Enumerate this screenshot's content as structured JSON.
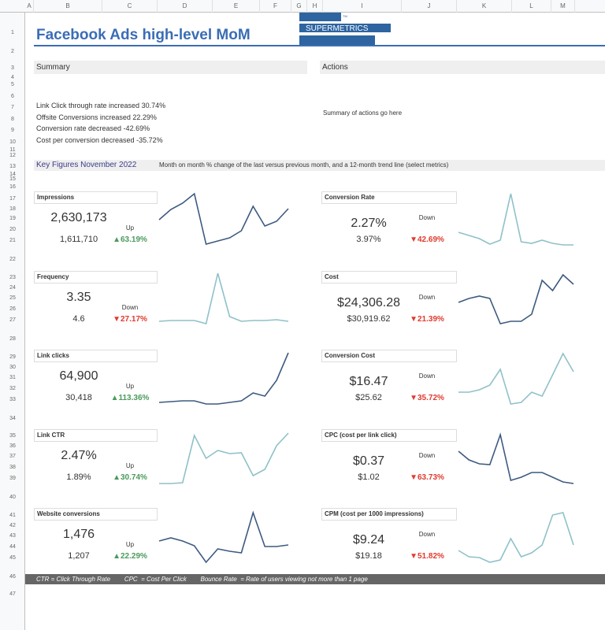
{
  "columns": [
    "A",
    "B",
    "C",
    "D",
    "E",
    "F",
    "G",
    "H",
    "I",
    "J",
    "K",
    "L",
    "M"
  ],
  "title": "Facebook Ads high-level MoM",
  "logo": {
    "text": "SUPERMETRICS",
    "tm": "TM",
    "color": "#2e64a0"
  },
  "summary": {
    "label": "Summary",
    "lines": [
      "Link Click through rate increased 30.74%",
      "Offsite Conversions increased 22.29%",
      "Conversion rate decreased -42.69%",
      "Cost per conversion decreased -35.72%"
    ]
  },
  "actions": {
    "label": "Actions",
    "text": "Summary of actions go here"
  },
  "key_figures": {
    "label": "Key Figures November 2022",
    "description": "Month on month % change of the last versus previous month, and a 12-month trend line (select metrics)"
  },
  "colors": {
    "up": "#4a9a5c",
    "down": "#e03a2e",
    "line_dark": "#3d5a80",
    "line_light": "#8fc1c9"
  },
  "cards": [
    {
      "title": "Impressions",
      "current": "2,630,173",
      "previous": "1,611,710",
      "direction": "Up",
      "change": "▲63.19%",
      "trend_style": "dark",
      "trend": [
        33,
        46,
        54,
        66,
        2,
        6,
        10,
        19,
        50,
        25,
        31,
        47
      ]
    },
    {
      "title": "Conversion Rate",
      "current": "2.27%",
      "previous": "3.97%",
      "direction": "Down",
      "change": "▼42.69%",
      "trend_style": "light",
      "trend": [
        17,
        13,
        9,
        2,
        7,
        66,
        5,
        3,
        7,
        3,
        1,
        1
      ]
    },
    {
      "title": "Frequency",
      "current": "3.35",
      "previous": "4.6",
      "direction": "Down",
      "change": "▼27.17%",
      "trend_style": "light",
      "trend": [
        5,
        6,
        6,
        6,
        2,
        66,
        11,
        5,
        6,
        6,
        7,
        5
      ]
    },
    {
      "title": "Cost",
      "current": "$24,306.28",
      "previous": "$30,919.62",
      "direction": "Down",
      "change": "▼21.39%",
      "trend_style": "dark",
      "trend": [
        29,
        34,
        37,
        34,
        2,
        5,
        5,
        14,
        57,
        44,
        64,
        52
      ]
    },
    {
      "title": "Link clicks",
      "current": "64,900",
      "previous": "30,418",
      "direction": "Up",
      "change": "▲113.36%",
      "trend_style": "dark",
      "trend": [
        2,
        3,
        4,
        4,
        0,
        0,
        2,
        4,
        14,
        10,
        30,
        65
      ]
    },
    {
      "title": "Conversion Cost",
      "current": "$16.47",
      "previous": "$25.62",
      "direction": "Down",
      "change": "▼35.72%",
      "trend_style": "light",
      "trend": [
        15,
        15,
        18,
        24,
        44,
        0,
        2,
        15,
        10,
        37,
        64,
        41
      ]
    },
    {
      "title": "Link CTR",
      "current": "2.47%",
      "previous": "1.89%",
      "direction": "Up",
      "change": "▲30.74%",
      "trend_style": "light",
      "trend": [
        0,
        0,
        1,
        61,
        32,
        42,
        38,
        39,
        10,
        18,
        48,
        64
      ]
    },
    {
      "title": "CPC (cost per link click)",
      "current": "$0.37",
      "previous": "$1.02",
      "direction": "Down",
      "change": "▼63.73%",
      "trend_style": "dark",
      "trend": [
        41,
        30,
        25,
        24,
        62,
        4,
        8,
        14,
        14,
        8,
        2,
        0
      ]
    },
    {
      "title": "Website conversions",
      "current": "1,476",
      "previous": "1,207",
      "direction": "Up",
      "change": "▲22.29%",
      "trend_style": "dark",
      "trend": [
        27,
        31,
        27,
        21,
        0,
        17,
        14,
        12,
        63,
        20,
        20,
        22
      ]
    },
    {
      "title": "CPM (cost per 1000 impressions)",
      "current": "$9.24",
      "previous": "$19.18",
      "direction": "Down",
      "change": "▼51.82%",
      "trend_style": "light",
      "trend": [
        15,
        7,
        6,
        0,
        3,
        30,
        7,
        12,
        22,
        60,
        63,
        22
      ]
    }
  ],
  "footer": "CTR = Click Through Rate        CPC  = Cost Per Click        Bounce Rate  = Rate of users viewing not more than 1 page"
}
